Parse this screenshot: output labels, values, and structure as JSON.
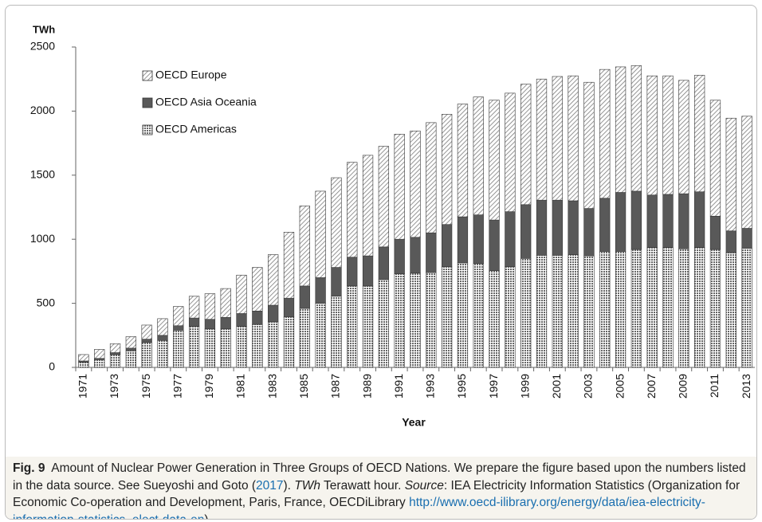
{
  "chart_data": {
    "type": "stacked_bar",
    "y_axis_label": "TWh",
    "x_axis_label": "Year",
    "categories": [
      "1971",
      null,
      "1973",
      null,
      "1975",
      null,
      "1977",
      null,
      "1979",
      null,
      "1981",
      null,
      "1983",
      null,
      "1985",
      null,
      "1987",
      null,
      "1989",
      null,
      "1991",
      null,
      "1993",
      null,
      "1995",
      null,
      "1997",
      null,
      "1999",
      null,
      "2001",
      null,
      "2003",
      null,
      "2005",
      null,
      "2007",
      null,
      "2009",
      null,
      "2011",
      null,
      "2013"
    ],
    "series": [
      {
        "name": "OECD Americas",
        "color": "#666666",
        "pattern": "crosshatch",
        "values": [
          40,
          60,
          100,
          130,
          195,
          210,
          290,
          320,
          300,
          300,
          320,
          335,
          355,
          395,
          460,
          500,
          555,
          635,
          635,
          685,
          730,
          735,
          740,
          785,
          815,
          810,
          755,
          785,
          850,
          875,
          875,
          880,
          870,
          905,
          905,
          920,
          935,
          935,
          925,
          935,
          920,
          895,
          930
        ]
      },
      {
        "name": "OECD Asia Oceania",
        "color": "#595959",
        "pattern": "solid",
        "values": [
          10,
          10,
          15,
          20,
          25,
          40,
          35,
          65,
          75,
          90,
          100,
          105,
          130,
          145,
          175,
          200,
          225,
          225,
          235,
          255,
          270,
          280,
          310,
          330,
          360,
          380,
          395,
          430,
          420,
          430,
          430,
          420,
          370,
          415,
          460,
          455,
          410,
          415,
          430,
          435,
          260,
          170,
          155
        ]
      },
      {
        "name": "OECD Europe",
        "color": "#7a7a7a",
        "pattern": "hatch",
        "values": [
          50,
          70,
          70,
          90,
          110,
          130,
          150,
          170,
          200,
          225,
          300,
          340,
          395,
          515,
          625,
          675,
          700,
          740,
          785,
          785,
          820,
          830,
          860,
          860,
          880,
          920,
          935,
          925,
          940,
          945,
          965,
          975,
          985,
          1005,
          980,
          980,
          930,
          925,
          885,
          910,
          905,
          880,
          875
        ]
      }
    ],
    "ylim": [
      0,
      2500
    ],
    "yticks": [
      0,
      500,
      1000,
      1500,
      2000,
      2500
    ],
    "grid": false
  },
  "caption": {
    "label": "Fig. 9",
    "title": "Amount of Nuclear Power Generation in Three Groups of OECD Nations.",
    "text1": "We prepare the figure based upon the numbers listed in the data source. See Sueyoshi and Goto (",
    "ref": "2017",
    "text2": ").",
    "abbr": "TWh",
    "abbr_def": "Terawatt hour.",
    "source_label": "Source",
    "source_text": ": IEA Electricity Information Statistics (Organization for Economic Co-operation and Development, Paris, France, OECDiLibrary",
    "url": "http://www.oecd-ilibrary.org/energy/data/iea-electricity-information-statistics_elect-data-en",
    "close": ")"
  }
}
